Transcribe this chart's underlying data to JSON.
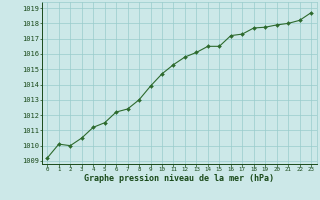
{
  "x": [
    0,
    1,
    2,
    3,
    4,
    5,
    6,
    7,
    8,
    9,
    10,
    11,
    12,
    13,
    14,
    15,
    16,
    17,
    18,
    19,
    20,
    21,
    22,
    23
  ],
  "y": [
    1009.2,
    1010.1,
    1010.0,
    1010.5,
    1011.2,
    1011.5,
    1012.2,
    1012.4,
    1013.0,
    1013.9,
    1014.7,
    1015.3,
    1015.8,
    1016.1,
    1016.5,
    1016.5,
    1017.2,
    1017.3,
    1017.7,
    1017.75,
    1017.9,
    1018.0,
    1018.2,
    1018.7
  ],
  "line_color": "#2d6a2d",
  "marker": "D",
  "marker_size": 2.0,
  "bg_color": "#cce8e8",
  "grid_color": "#99cccc",
  "ylabel_values": [
    1009,
    1010,
    1011,
    1012,
    1013,
    1014,
    1015,
    1016,
    1017,
    1018,
    1019
  ],
  "xlabel": "Graphe pression niveau de la mer (hPa)",
  "text_color": "#1a4a1a",
  "ylim": [
    1008.8,
    1019.4
  ],
  "xlim": [
    -0.5,
    23.5
  ],
  "ytick_fontsize": 5.0,
  "xtick_fontsize": 4.2,
  "xlabel_fontsize": 6.0
}
